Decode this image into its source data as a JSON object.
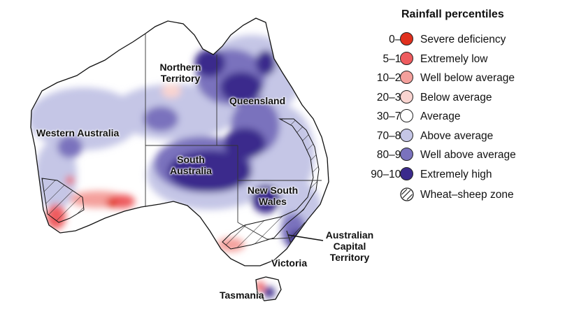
{
  "legend": {
    "title": "Rainfall percentiles",
    "items": [
      {
        "range": "0–5",
        "label": "Severe deficiency",
        "color": "#e0301e"
      },
      {
        "range": "5–10",
        "label": "Extremely low",
        "color": "#ee5b5e"
      },
      {
        "range": "10–20",
        "label": "Well below average",
        "color": "#f4a09c"
      },
      {
        "range": "20–30",
        "label": "Below average",
        "color": "#f9d4d0"
      },
      {
        "range": "30–70",
        "label": "Average",
        "color": "#ffffff"
      },
      {
        "range": "70–80",
        "label": "Above average",
        "color": "#c5c6e6"
      },
      {
        "range": "80–90",
        "label": "Well above average",
        "color": "#7a72bd"
      },
      {
        "range": "90–100",
        "label": "Extremely high",
        "color": "#3b2a8c"
      }
    ],
    "hatch_label": "Wheat–sheep zone"
  },
  "regions": {
    "nt": "Northern Territory",
    "wa": "Western Australia",
    "qld": "Queensland",
    "sa": "South Australia",
    "nsw": "New South Wales",
    "act": "Australian Capital Territory",
    "vic": "Victoria",
    "tas": "Tasmania"
  }
}
